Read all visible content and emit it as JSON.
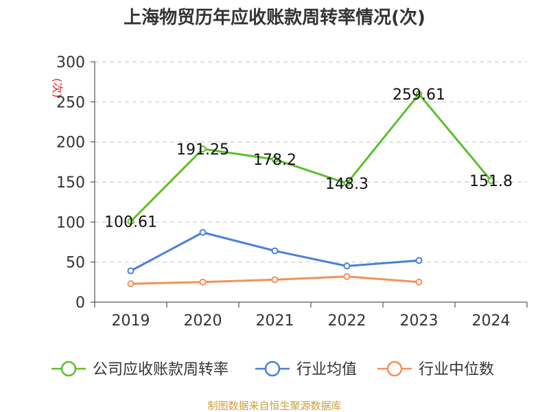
{
  "chart_data": {
    "type": "line",
    "title": "上海物贸历年应收账款周转率情况(次)",
    "ylabel": "(次)",
    "xlabel": "",
    "categories": [
      "2019",
      "2020",
      "2021",
      "2022",
      "2023",
      "2024"
    ],
    "ylim": [
      0,
      300
    ],
    "yticks": [
      0,
      50,
      100,
      150,
      200,
      250,
      300
    ],
    "grid": true,
    "legend_position": "bottom",
    "series": [
      {
        "name": "公司应收账款周转率",
        "color": "#5cbf2a",
        "values": [
          100.61,
          191.25,
          178.2,
          148.3,
          259.61,
          151.8
        ],
        "labels": [
          "100.61",
          "191.25",
          "178.2",
          "148.3",
          "259.61",
          "151.8"
        ]
      },
      {
        "name": "行业均值",
        "color": "#4a7fd8",
        "values": [
          39,
          87,
          64,
          45,
          52,
          null
        ]
      },
      {
        "name": "行业中位数",
        "color": "#f4905a",
        "values": [
          23,
          25,
          28,
          32,
          25,
          null
        ]
      }
    ]
  },
  "source": "制图数据来自恒生聚源数据库"
}
